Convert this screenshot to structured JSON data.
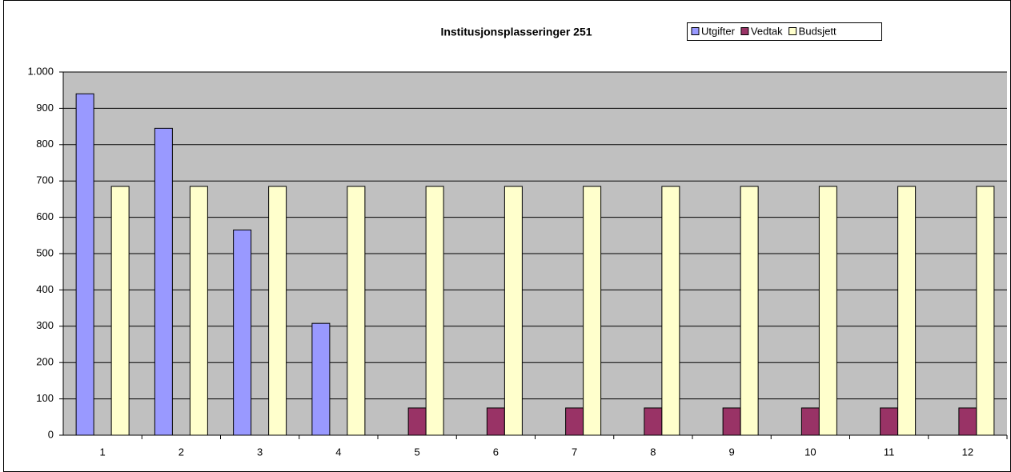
{
  "chart_data": {
    "type": "bar",
    "title": "Institusjonsplasseringer 251",
    "categories": [
      "1",
      "2",
      "3",
      "4",
      "5",
      "6",
      "7",
      "8",
      "9",
      "10",
      "11",
      "12"
    ],
    "series": [
      {
        "name": "Utgifter",
        "color": "#9999ff",
        "values": [
          940,
          845,
          565,
          308,
          null,
          null,
          null,
          null,
          null,
          null,
          null,
          null
        ]
      },
      {
        "name": "Vedtak",
        "color": "#993366",
        "values": [
          null,
          null,
          null,
          null,
          75,
          75,
          75,
          75,
          75,
          75,
          75,
          75
        ]
      },
      {
        "name": "Budsjett",
        "color": "#ffffcc",
        "values": [
          685,
          685,
          685,
          685,
          685,
          685,
          685,
          685,
          685,
          685,
          685,
          685
        ]
      }
    ],
    "ylim": [
      0,
      1000
    ],
    "yticks": [
      0,
      100,
      200,
      300,
      400,
      500,
      600,
      700,
      800,
      900,
      {
        "value": 1000,
        "label": "1.000"
      }
    ],
    "grid": true,
    "legend": "top-right",
    "plot_background": "#c0c0c0"
  }
}
